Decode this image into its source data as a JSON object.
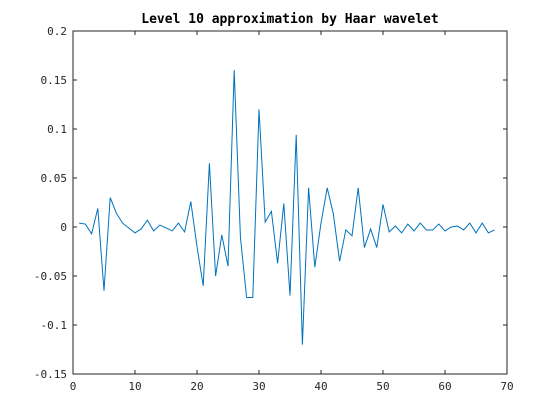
{
  "chart_data": {
    "type": "line",
    "title": "Level 10 approximation by Haar wavelet",
    "xlabel": "",
    "ylabel": "",
    "xlim": [
      0,
      70
    ],
    "ylim": [
      -0.15,
      0.2
    ],
    "xticks": [
      0,
      10,
      20,
      30,
      40,
      50,
      60,
      70
    ],
    "yticks": [
      -0.15,
      -0.1,
      -0.05,
      0,
      0.05,
      0.1,
      0.15,
      0.2
    ],
    "ytick_labels": [
      "-0.15",
      "-0.1",
      "-0.05",
      "0",
      "0.05",
      "0.1",
      "0.15",
      "0.2"
    ],
    "grid": false,
    "line_color": "#0072BD",
    "series": [
      {
        "x": [
          1,
          2,
          3,
          4,
          5,
          6,
          7,
          8,
          9,
          10,
          11,
          12,
          13,
          14,
          15,
          16,
          17,
          18,
          19,
          20,
          21,
          22,
          23,
          24,
          25,
          26,
          27,
          28,
          29,
          30,
          31,
          32,
          33,
          34,
          35,
          36,
          37,
          38,
          39,
          40,
          41,
          42,
          43,
          44,
          45,
          46,
          47,
          48,
          49,
          50,
          51,
          52,
          53,
          54,
          55,
          56,
          57,
          58,
          59,
          60,
          61,
          62,
          63,
          64,
          65,
          66,
          67,
          68
        ],
        "values": [
          0.004,
          0.003,
          -0.007,
          0.019,
          -0.065,
          0.03,
          0.014,
          0.004,
          -0.001,
          -0.006,
          -0.002,
          0.007,
          -0.004,
          0.002,
          -0.001,
          -0.004,
          0.004,
          -0.005,
          0.026,
          -0.02,
          -0.06,
          0.065,
          -0.05,
          -0.008,
          -0.04,
          0.16,
          -0.01,
          -0.072,
          -0.072,
          0.12,
          0.005,
          0.016,
          -0.037,
          0.024,
          -0.07,
          0.094,
          -0.12,
          0.04,
          -0.041,
          0.004,
          0.04,
          0.013,
          -0.035,
          -0.003,
          -0.009,
          0.04,
          -0.021,
          -0.002,
          -0.021,
          0.023,
          -0.005,
          0.001,
          -0.006,
          0.003,
          -0.004,
          0.004,
          -0.003,
          -0.003,
          0.003,
          -0.004,
          0.0,
          0.001,
          -0.003,
          0.004,
          -0.006,
          0.004,
          -0.006,
          -0.003
        ]
      }
    ]
  }
}
